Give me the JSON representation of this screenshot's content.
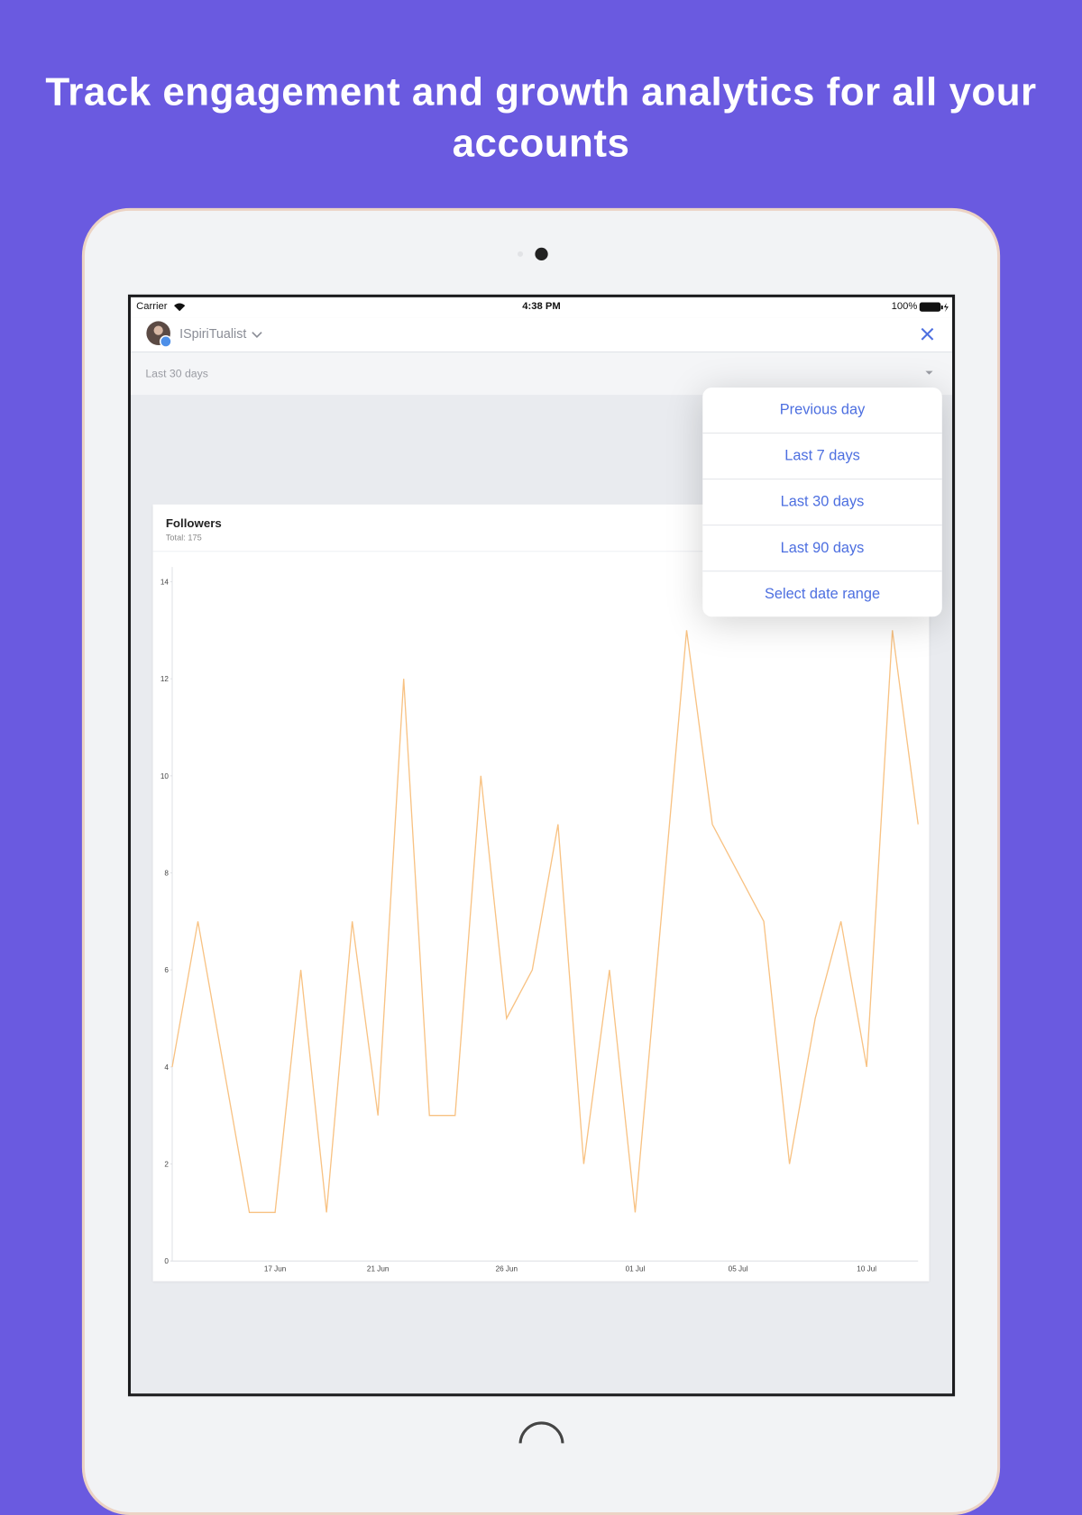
{
  "headline": "Track engagement and growth analytics for all your accounts",
  "status_bar": {
    "carrier": "Carrier",
    "time": "4:38 PM",
    "battery": "100%"
  },
  "account": {
    "name": "ISpiriTualist"
  },
  "date_filter": {
    "selected": "Last 30 days",
    "options": [
      "Previous day",
      "Last 7 days",
      "Last 30 days",
      "Last 90 days",
      "Select date range"
    ]
  },
  "chart_data": {
    "type": "line",
    "title": "Followers",
    "subtitle": "Total: 175",
    "categories": [
      null,
      null,
      null,
      null,
      "17 Jun",
      null,
      null,
      null,
      "21 Jun",
      null,
      null,
      null,
      null,
      "26 Jun",
      null,
      null,
      null,
      null,
      "01 Jul",
      null,
      null,
      null,
      "05 Jul",
      null,
      null,
      null,
      null,
      "10 Jul",
      null,
      null
    ],
    "values": [
      4,
      7,
      4,
      1,
      1,
      6,
      1,
      7,
      3,
      12,
      3,
      3,
      10,
      5,
      6,
      9,
      2,
      6,
      1,
      7,
      13,
      9,
      8,
      7,
      2,
      5,
      7,
      4,
      13,
      9
    ],
    "color": "#f8c283",
    "ylim": [
      0,
      14
    ],
    "yticks": [
      0,
      2,
      4,
      6,
      8,
      10,
      12,
      14
    ]
  }
}
